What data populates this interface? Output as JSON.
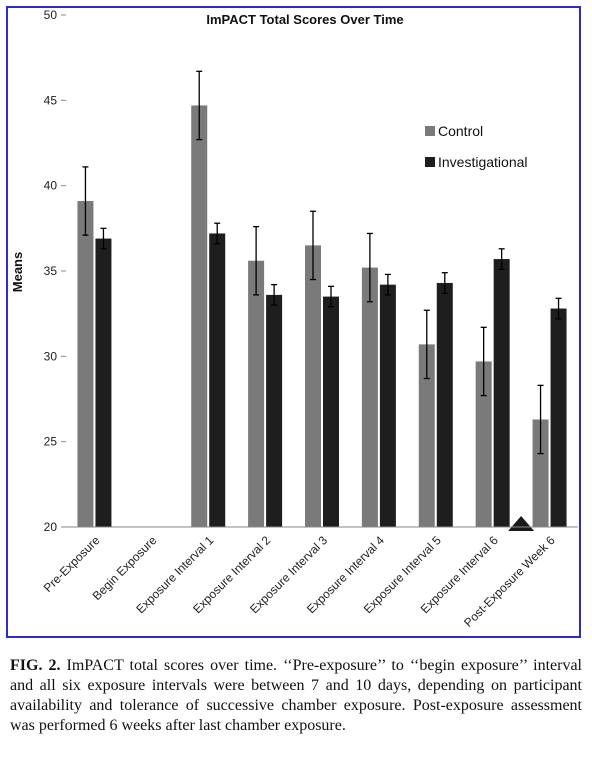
{
  "chart_data": {
    "type": "bar",
    "title": "ImPACT Total Scores Over Time",
    "xlabel": "",
    "ylabel": "Means",
    "ylim": [
      20,
      50
    ],
    "yticks": [
      20,
      25,
      30,
      35,
      40,
      45,
      50
    ],
    "categories": [
      "Pre-Exposure",
      "Begin Exposure",
      "Exposure Interval 1",
      "Exposure Interval 2",
      "Exposure Interval 3",
      "Exposure Interval 4",
      "Exposure Interval 5",
      "Exposure Interval 6",
      "Post-Exposure Week 6"
    ],
    "series": [
      {
        "name": "Control",
        "color": "#7a7a7a",
        "values": [
          39.1,
          null,
          44.7,
          35.6,
          36.5,
          35.2,
          30.7,
          29.7,
          26.3
        ],
        "errors": [
          2.0,
          null,
          2.0,
          2.0,
          2.0,
          2.0,
          2.0,
          2.0,
          2.0
        ]
      },
      {
        "name": "Investigational",
        "color": "#1e1e1e",
        "values": [
          36.9,
          null,
          37.2,
          33.6,
          33.5,
          34.2,
          34.3,
          35.7,
          32.8
        ],
        "errors": [
          0.6,
          null,
          0.6,
          0.6,
          0.6,
          0.6,
          0.6,
          0.6,
          0.6
        ]
      }
    ],
    "legend_position": "top-right",
    "grid": false,
    "marker": {
      "shape": "triangle",
      "category": "Exposure Interval 6",
      "color": "#1a1a1a"
    }
  },
  "caption": {
    "label": "FIG. 2.",
    "text": "ImPACT total scores over time. ‘‘Pre-exposure’’ to ‘‘begin exposure’’ interval and all six exposure intervals were between 7 and 10 days, depending on participant availability and tolerance of successive chamber exposure. Post-exposure assessment was performed 6 weeks after last chamber exposure."
  }
}
